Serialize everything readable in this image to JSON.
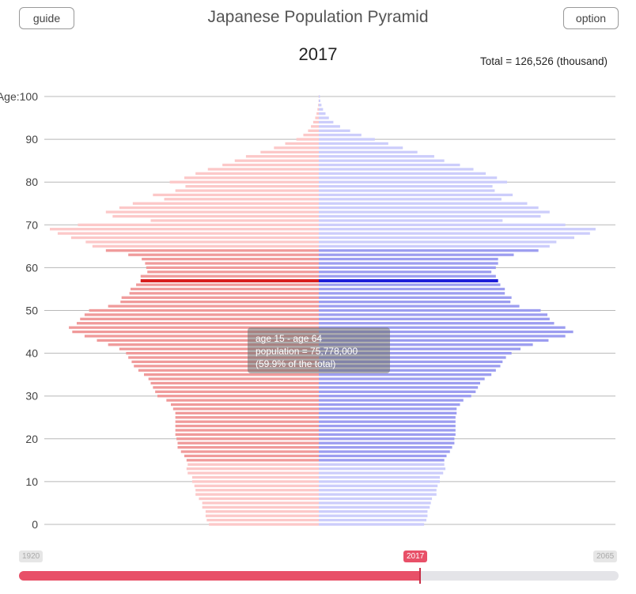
{
  "header": {
    "guide_label": "guide",
    "option_label": "option",
    "title": "Japanese Population Pyramid"
  },
  "year_label": "2017",
  "total_label": "Total = 126,526 (thousand)",
  "tooltip": {
    "line1": "age 15 - age 64",
    "line2": "population = 75,778,000",
    "line3": "(59.9% of the total)"
  },
  "slider": {
    "min_label": "1920",
    "max_label": "2065",
    "current_label": "2017",
    "min": 1920,
    "max": 2065,
    "value": 2017
  },
  "colors": {
    "male_light": "#fcc8c8",
    "male_dark": "#f09a9a",
    "male_highlight": "#d81e1e",
    "female_light": "#cccdfb",
    "female_dark": "#9c9df0",
    "female_highlight": "#1e1ed8",
    "accent": "#e85068"
  },
  "chart_data": {
    "type": "bar",
    "orientation": "horizontal-mirrored",
    "year": 2017,
    "unit": "thousand",
    "ylim": [
      0,
      100
    ],
    "y_ticks": [
      {
        "age": 0,
        "label": "0"
      },
      {
        "age": 10,
        "label": "10"
      },
      {
        "age": 20,
        "label": "20"
      },
      {
        "age": 30,
        "label": "30"
      },
      {
        "age": 40,
        "label": "40"
      },
      {
        "age": 50,
        "label": "50"
      },
      {
        "age": 60,
        "label": "60"
      },
      {
        "age": 70,
        "label": "70"
      },
      {
        "age": 80,
        "label": "80"
      },
      {
        "age": 90,
        "label": "90"
      },
      {
        "age": 100,
        "label": "Age:100"
      }
    ],
    "highlight_range": [
      15,
      64
    ],
    "highlight_age": 57,
    "ages": [
      0,
      1,
      2,
      3,
      4,
      5,
      6,
      7,
      8,
      9,
      10,
      11,
      12,
      13,
      14,
      15,
      16,
      17,
      18,
      19,
      20,
      21,
      22,
      23,
      24,
      25,
      26,
      27,
      28,
      29,
      30,
      31,
      32,
      33,
      34,
      35,
      36,
      37,
      38,
      39,
      40,
      41,
      42,
      43,
      44,
      45,
      46,
      47,
      48,
      49,
      50,
      51,
      52,
      53,
      54,
      55,
      56,
      57,
      58,
      59,
      60,
      61,
      62,
      63,
      64,
      65,
      66,
      67,
      68,
      69,
      70,
      71,
      72,
      73,
      74,
      75,
      76,
      77,
      78,
      79,
      80,
      81,
      82,
      83,
      84,
      85,
      86,
      87,
      88,
      89,
      90,
      91,
      92,
      93,
      94,
      95,
      96,
      97,
      98,
      99,
      100
    ],
    "series": [
      {
        "name": "male",
        "values": [
          490,
          500,
          505,
          505,
          520,
          520,
          535,
          550,
          550,
          555,
          565,
          565,
          585,
          590,
          585,
          590,
          600,
          615,
          630,
          630,
          635,
          640,
          640,
          640,
          640,
          640,
          640,
          650,
          660,
          680,
          720,
          730,
          740,
          750,
          760,
          780,
          805,
          825,
          835,
          850,
          860,
          890,
          940,
          990,
          1045,
          1100,
          1115,
          1080,
          1065,
          1045,
          1025,
          940,
          885,
          880,
          845,
          840,
          815,
          795,
          795,
          765,
          770,
          775,
          790,
          850,
          950,
          1010,
          1040,
          1105,
          1165,
          1200,
          1075,
          750,
          920,
          950,
          890,
          830,
          690,
          740,
          640,
          595,
          665,
          600,
          550,
          495,
          430,
          375,
          325,
          260,
          200,
          150,
          100,
          69,
          48,
          35,
          25,
          16,
          10,
          6,
          3,
          1,
          1
        ]
      },
      {
        "name": "female",
        "values": [
          470,
          480,
          485,
          485,
          495,
          500,
          505,
          525,
          525,
          530,
          540,
          540,
          555,
          565,
          560,
          560,
          570,
          585,
          595,
          605,
          605,
          610,
          610,
          610,
          610,
          610,
          615,
          615,
          630,
          645,
          680,
          700,
          710,
          720,
          740,
          770,
          790,
          810,
          820,
          835,
          860,
          900,
          955,
          1025,
          1100,
          1135,
          1100,
          1050,
          1030,
          1020,
          990,
          895,
          855,
          860,
          830,
          830,
          810,
          800,
          790,
          770,
          790,
          800,
          800,
          870,
          980,
          1030,
          1060,
          1140,
          1210,
          1235,
          1100,
          820,
          990,
          1030,
          980,
          930,
          815,
          865,
          785,
          775,
          840,
          795,
          745,
          690,
          630,
          560,
          515,
          440,
          375,
          310,
          250,
          190,
          140,
          95,
          65,
          45,
          30,
          19,
          12,
          7,
          5
        ]
      }
    ]
  }
}
